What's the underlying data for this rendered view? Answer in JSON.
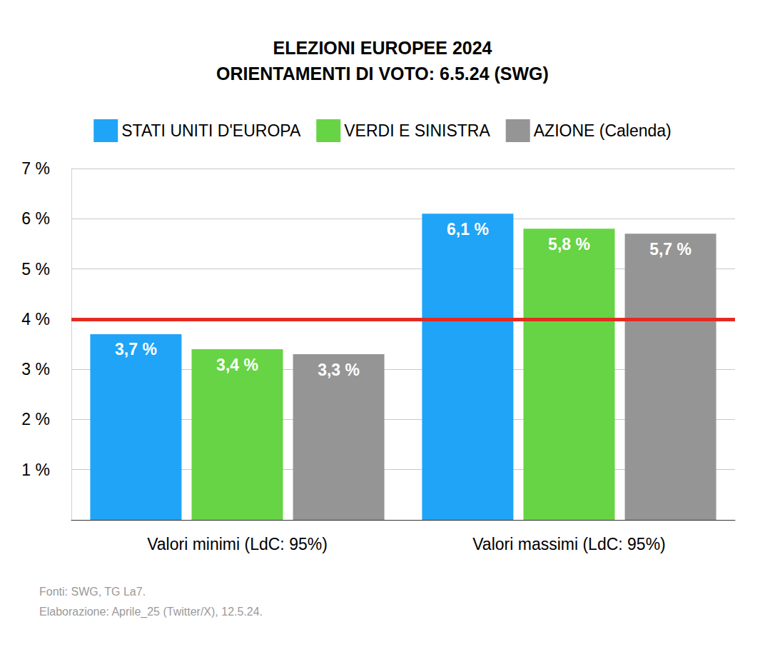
{
  "chart_data": {
    "type": "bar",
    "title": "ELEZIONI EUROPEE 2024\nORIENTAMENTI DI VOTO: 6.5.24 (SWG)",
    "categories": [
      "Valori minimi (LdC: 95%)",
      "Valori massimi (LdC: 95%)"
    ],
    "series": [
      {
        "name": "STATI UNITI D'EUROPA",
        "color": "#1fa4f7",
        "values": [
          3.7,
          6.1
        ],
        "value_labels": [
          "3,7 %",
          "6,1 %"
        ]
      },
      {
        "name": "VERDI E SINISTRA",
        "color": "#66d444",
        "values": [
          3.4,
          5.8
        ],
        "value_labels": [
          "3,4 %",
          "5,8 %"
        ]
      },
      {
        "name": "AZIONE (Calenda)",
        "color": "#959595",
        "values": [
          3.3,
          5.7
        ],
        "value_labels": [
          "3,3 %",
          "5,7 %"
        ]
      }
    ],
    "ylim": [
      0,
      7
    ],
    "yticks": [
      {
        "value": 1,
        "label": "1 %"
      },
      {
        "value": 2,
        "label": "2 %"
      },
      {
        "value": 3,
        "label": "3 %"
      },
      {
        "value": 4,
        "label": "4 %"
      },
      {
        "value": 5,
        "label": "5 %"
      },
      {
        "value": 6,
        "label": "6 %"
      },
      {
        "value": 7,
        "label": "7 %"
      }
    ],
    "hlines": [
      {
        "value": 4,
        "color": "#e32b22"
      }
    ],
    "grid": true,
    "legend": "top",
    "data_labels": true,
    "notes": [
      "Fonti: SWG, TG La7.",
      "Elaborazione: Aprile_25 (Twitter/X), 12.5.24."
    ]
  }
}
